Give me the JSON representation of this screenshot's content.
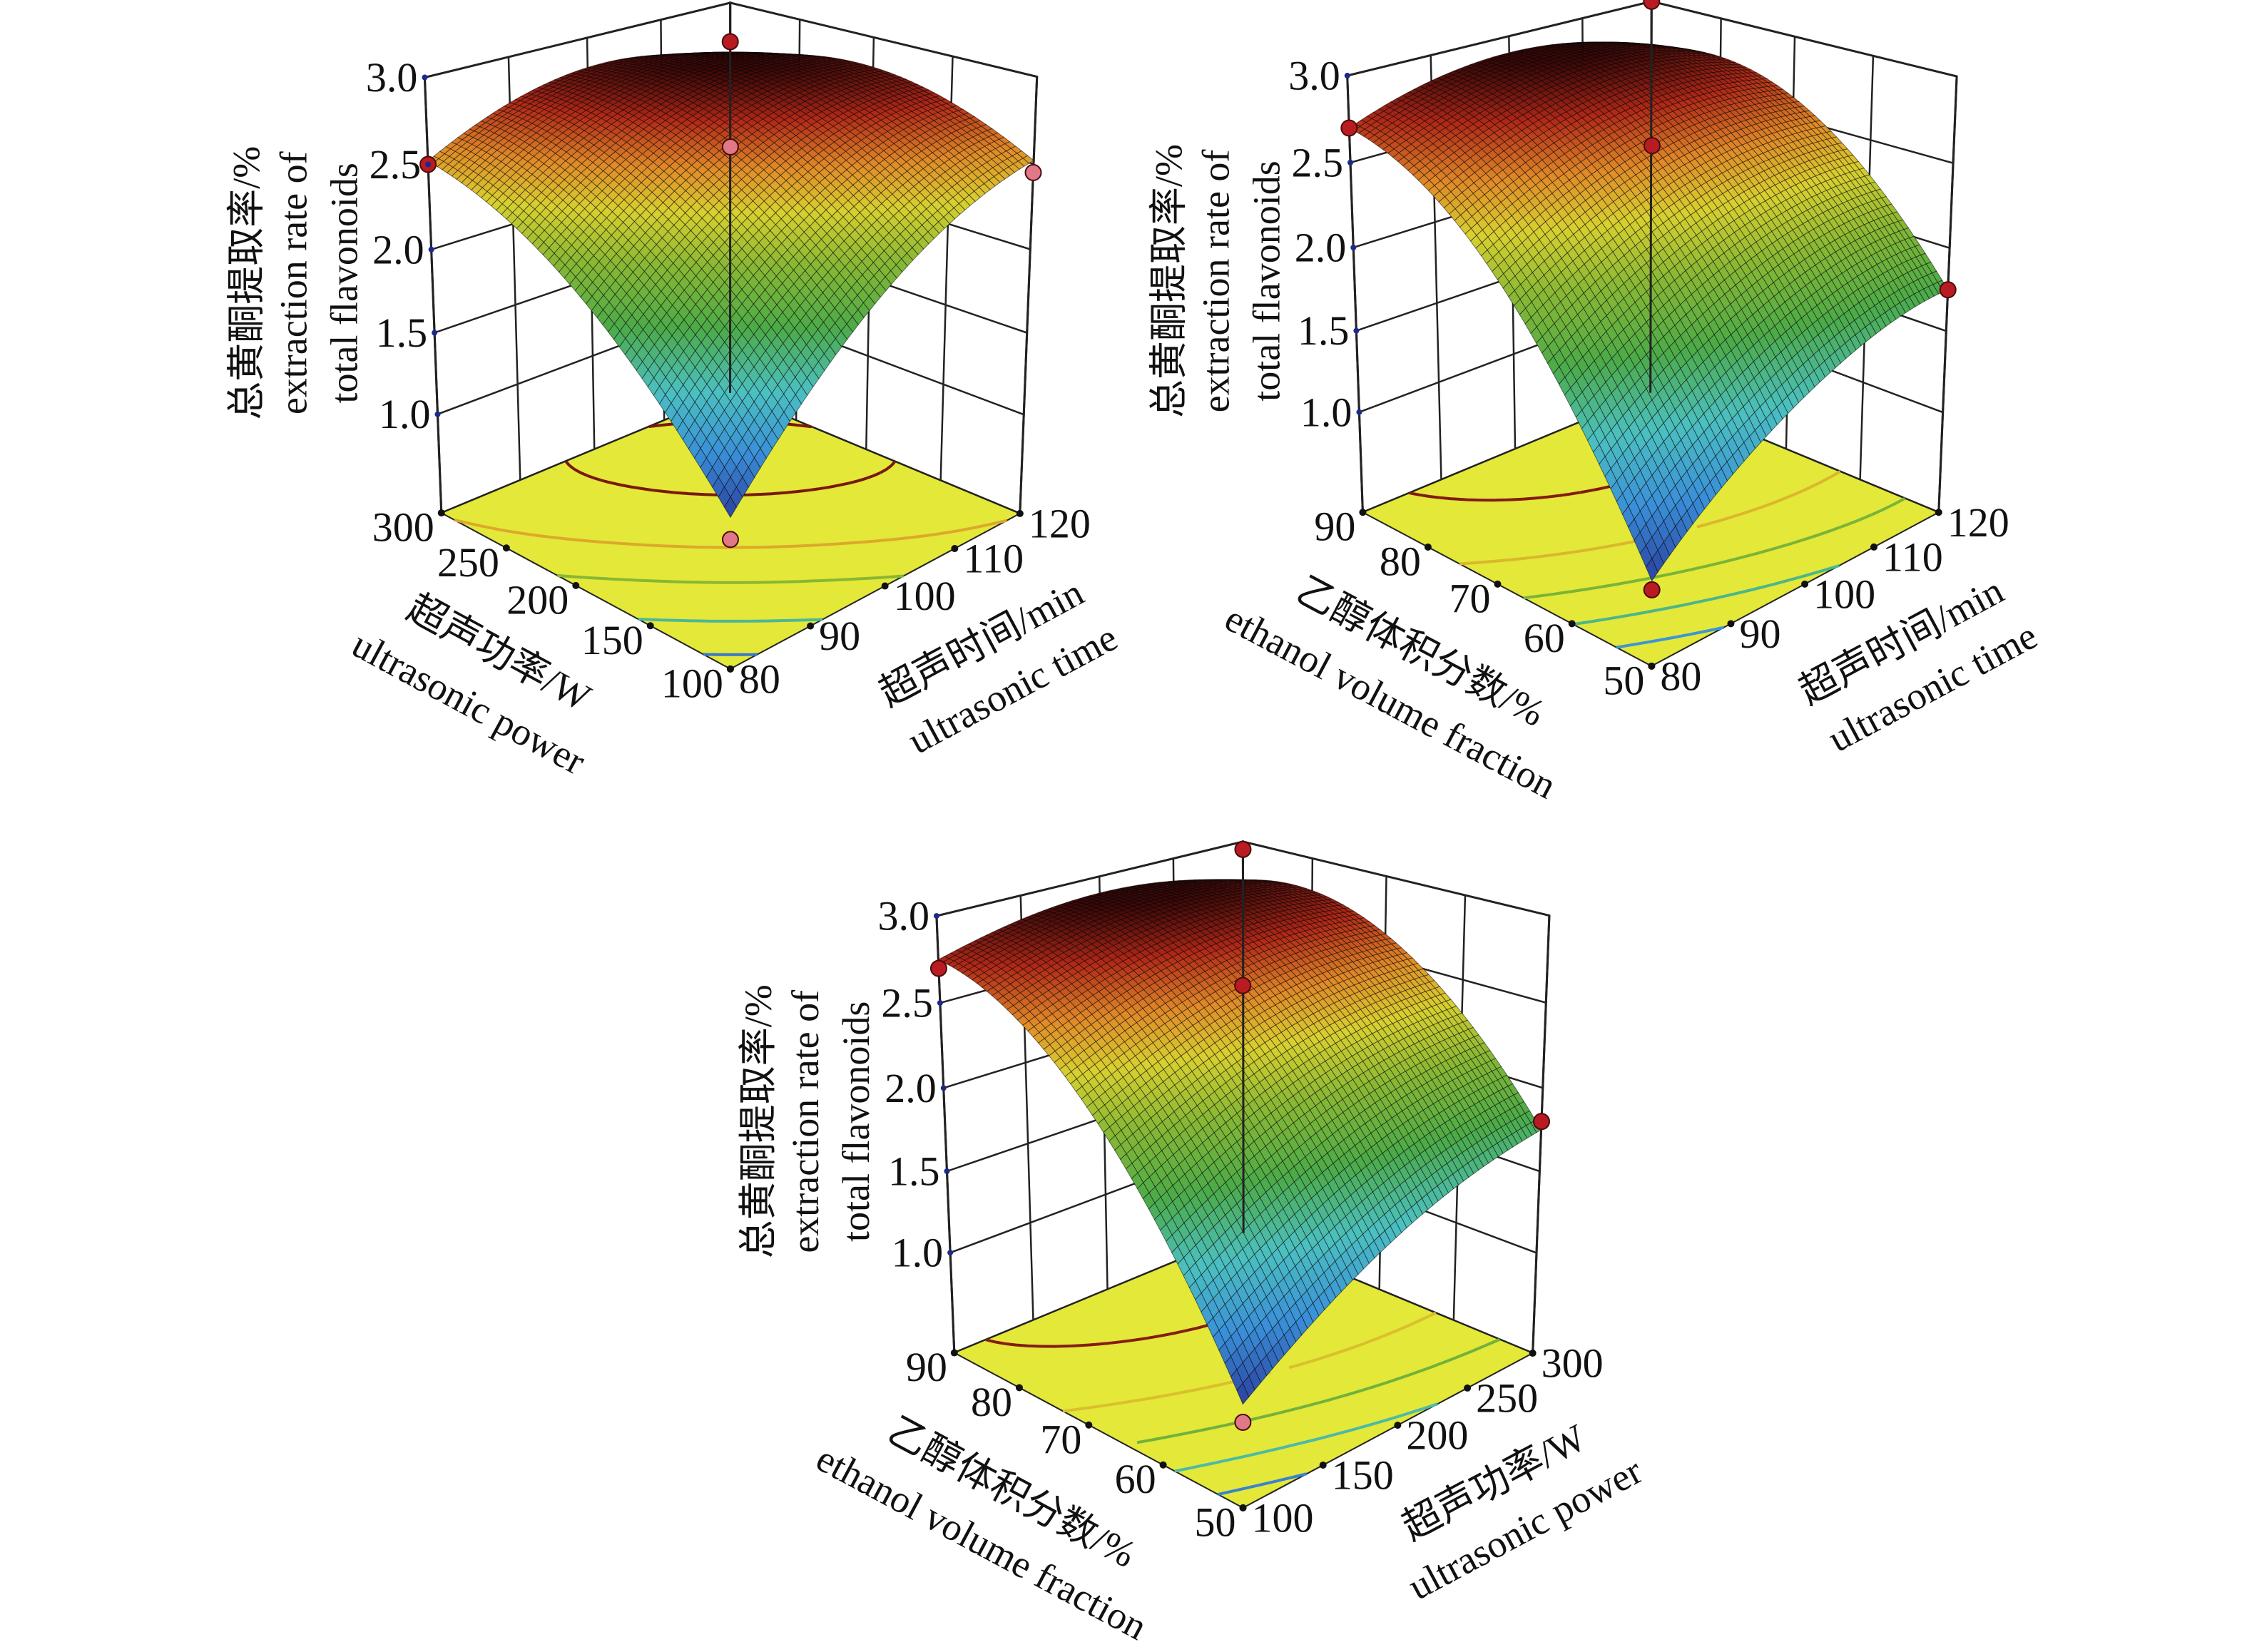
{
  "chart_data": [
    {
      "type": "surface3d",
      "x1": {
        "label_cn": "超声功率/W",
        "label_en": "ultrasonic power",
        "ticks": [
          100,
          150,
          200,
          250,
          300
        ]
      },
      "x2": {
        "label_cn": "超声时间/min",
        "label_en": "ultrasonic time",
        "ticks": [
          80,
          90,
          100,
          110,
          120
        ]
      },
      "z": {
        "label_cn": "总黄酮提取率/%",
        "label_en_1": "extraction rate of",
        "label_en_2": "total flavonoids",
        "ticks": [
          1.0,
          1.5,
          2.0,
          2.5,
          3.0
        ],
        "tick_labels": [
          "1.0",
          "1.5",
          "2.0",
          "2.5",
          "3.0"
        ]
      },
      "zlim": [
        0.38,
        3.0
      ],
      "surface_z": [
        [
          1.22,
          1.73,
          2.12,
          2.38,
          2.52
        ],
        [
          1.73,
          2.17,
          2.48,
          2.67,
          2.73
        ],
        [
          2.12,
          2.48,
          2.72,
          2.83,
          2.82
        ],
        [
          2.38,
          2.67,
          2.83,
          2.87,
          2.78
        ],
        [
          2.52,
          2.73,
          2.82,
          2.78,
          2.62
        ]
      ],
      "design_points": [
        [
          300,
          80,
          2.5
        ],
        [
          100,
          120,
          2.45
        ],
        [
          100,
          80,
          1.1
        ],
        [
          200,
          100,
          2.6
        ],
        [
          300,
          120,
          2.75
        ]
      ],
      "contour_levels": [
        1.4,
        1.8,
        2.2,
        2.5,
        2.8
      ],
      "floor_color": "#e4e838"
    },
    {
      "type": "surface3d",
      "x1": {
        "label_cn": "乙醇体积分数/%",
        "label_en": "ethanol volume fraction",
        "ticks": [
          50,
          60,
          70,
          80,
          90
        ]
      },
      "x2": {
        "label_cn": "超声时间/min",
        "label_en": "ultrasonic time",
        "ticks": [
          80,
          90,
          100,
          110,
          120
        ]
      },
      "z": {
        "label_cn": "总黄酮提取率/%",
        "label_en_1": "extraction rate of",
        "label_en_2": "total flavonoids",
        "ticks": [
          1.0,
          1.5,
          2.0,
          2.5,
          3.0
        ],
        "tick_labels": [
          "1.0",
          "1.5",
          "2.0",
          "2.5",
          "3.0"
        ]
      },
      "zlim": [
        0.37,
        3.0
      ],
      "surface_z": [
        [
          0.85,
          1.23,
          1.5,
          1.68,
          1.75
        ],
        [
          1.61,
          1.93,
          2.15,
          2.27,
          2.29
        ],
        [
          2.18,
          2.44,
          2.6,
          2.66,
          2.63
        ],
        [
          2.54,
          2.74,
          2.85,
          2.86,
          2.76
        ],
        [
          2.7,
          2.85,
          2.9,
          2.85,
          2.7
        ]
      ],
      "design_points": [
        [
          90,
          80,
          2.7
        ],
        [
          50,
          120,
          1.75
        ],
        [
          50,
          80,
          0.8
        ],
        [
          70,
          100,
          2.6
        ],
        [
          90,
          120,
          3.0
        ]
      ],
      "contour_levels": [
        1.2,
        1.6,
        2.0,
        2.4,
        2.8
      ],
      "floor_color": "#e4e838"
    },
    {
      "type": "surface3d",
      "x1": {
        "label_cn": "乙醇体积分数/%",
        "label_en": "ethanol volume fraction",
        "ticks": [
          50,
          60,
          70,
          80,
          90
        ]
      },
      "x2": {
        "label_cn": "超声功率/W",
        "label_en": "ultrasonic power",
        "ticks": [
          100,
          150,
          200,
          250,
          300
        ]
      },
      "z": {
        "label_cn": "总黄酮提取率/%",
        "label_en_1": "extraction rate of",
        "label_en_2": "total flavonoids",
        "ticks": [
          1.0,
          1.5,
          2.0,
          2.5,
          3.0
        ],
        "tick_labels": [
          "1.0",
          "1.5",
          "2.0",
          "2.5",
          "3.0"
        ]
      },
      "zlim": [
        0.37,
        3.0
      ],
      "surface_z": [
        [
          0.95,
          1.26,
          1.5,
          1.66,
          1.75
        ],
        [
          1.7,
          1.96,
          2.15,
          2.26,
          2.3
        ],
        [
          2.25,
          2.46,
          2.6,
          2.66,
          2.65
        ],
        [
          2.6,
          2.76,
          2.85,
          2.86,
          2.8
        ],
        [
          2.75,
          2.86,
          2.9,
          2.86,
          2.75
        ]
      ],
      "design_points": [
        [
          90,
          100,
          2.7
        ],
        [
          50,
          300,
          1.8
        ],
        [
          50,
          100,
          0.85
        ],
        [
          70,
          200,
          2.6
        ],
        [
          90,
          300,
          2.95
        ]
      ],
      "contour_levels": [
        1.2,
        1.6,
        2.0,
        2.4,
        2.8
      ],
      "floor_color": "#e4e838"
    }
  ]
}
